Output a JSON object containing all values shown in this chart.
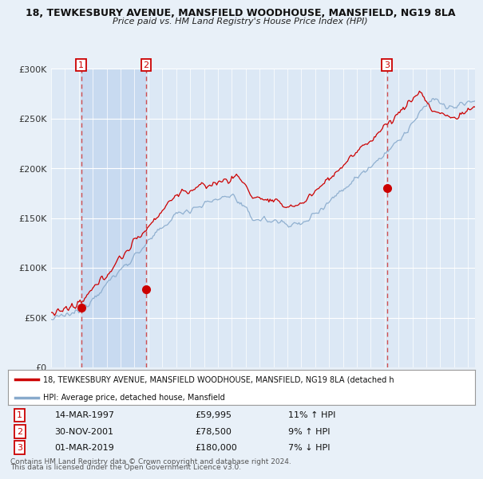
{
  "title1": "18, TEWKESBURY AVENUE, MANSFIELD WOODHOUSE, MANSFIELD, NG19 8LA",
  "title2": "Price paid vs. HM Land Registry's House Price Index (HPI)",
  "bg_color": "#e8f0f8",
  "plot_bg_color": "#dce8f5",
  "plot_bg_alt": "#c8daf0",
  "grid_color": "#ffffff",
  "sale_dates": [
    "1997-03-14",
    "2001-11-30",
    "2019-03-01"
  ],
  "sale_prices": [
    59995,
    78500,
    180000
  ],
  "sale_labels": [
    "1",
    "2",
    "3"
  ],
  "legend_line1": "18, TEWKESBURY AVENUE, MANSFIELD WOODHOUSE, MANSFIELD, NG19 8LA (detached h",
  "legend_line2": "HPI: Average price, detached house, Mansfield",
  "table_rows": [
    {
      "num": "1",
      "date": "14-MAR-1997",
      "price": "£59,995",
      "hpi": "11% ↑ HPI"
    },
    {
      "num": "2",
      "date": "30-NOV-2001",
      "price": "£78,500",
      "hpi": "9% ↑ HPI"
    },
    {
      "num": "3",
      "date": "01-MAR-2019",
      "price": "£180,000",
      "hpi": "7% ↓ HPI"
    }
  ],
  "footnote1": "Contains HM Land Registry data © Crown copyright and database right 2024.",
  "footnote2": "This data is licensed under the Open Government Licence v3.0.",
  "ylim": [
    0,
    300000
  ],
  "yticks": [
    0,
    50000,
    100000,
    150000,
    200000,
    250000,
    300000
  ],
  "xstart": 1995.0,
  "xend": 2025.5,
  "line_color_red": "#cc0000",
  "line_color_blue": "#88aacc",
  "dot_color": "#cc0000",
  "vline_color": "#cc3333",
  "marker_label_bg": "#ffffff",
  "marker_label_border": "#cc0000"
}
